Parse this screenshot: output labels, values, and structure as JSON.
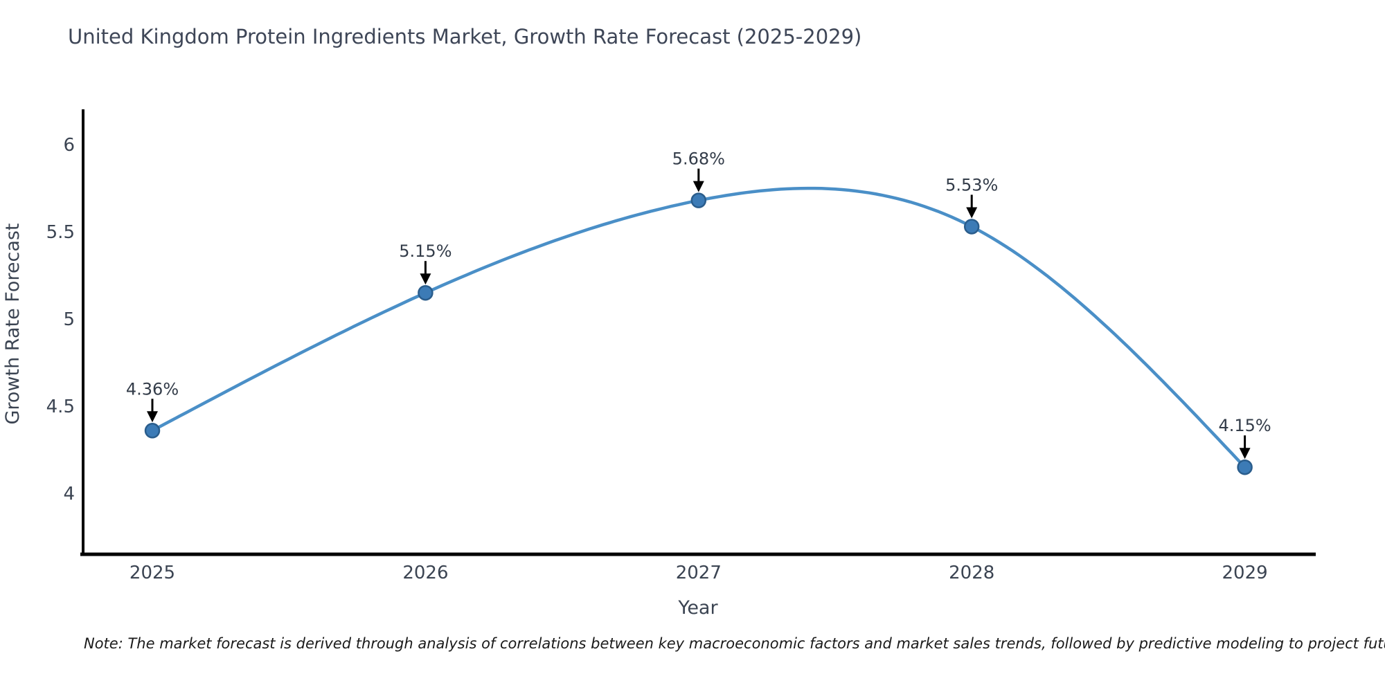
{
  "chart_data": {
    "type": "line",
    "title": "United Kingdom Protein Ingredients Market, Growth Rate Forecast (2025-2029)",
    "xlabel": "Year",
    "ylabel": "Growth Rate Forecast",
    "note": "Note: The market forecast is derived through analysis of correlations between key macroeconomic factors and market sales trends, followed by predictive modeling to project future sales",
    "x": [
      2025,
      2026,
      2027,
      2028,
      2029
    ],
    "series": [
      {
        "name": "Growth Rate Forecast",
        "values": [
          4.36,
          5.15,
          5.68,
          5.53,
          4.15
        ]
      }
    ],
    "point_labels": [
      "4.36%",
      "5.15%",
      "5.68%",
      "5.53%",
      "4.15%"
    ],
    "yticks": [
      4,
      4.5,
      5,
      5.5,
      6
    ],
    "ylim": [
      3.6,
      6.2
    ],
    "grid": false,
    "legend": false,
    "smooth": true,
    "colors": {
      "line": "#4a8fc7",
      "marker_fill": "#3c7bb6",
      "marker_edge": "#2a5d8c",
      "arrow": "#000000",
      "axis": "#000000",
      "title_text": "#3e4657",
      "tick_text": "#3b4452",
      "note_text": "#1a1a1a"
    }
  }
}
